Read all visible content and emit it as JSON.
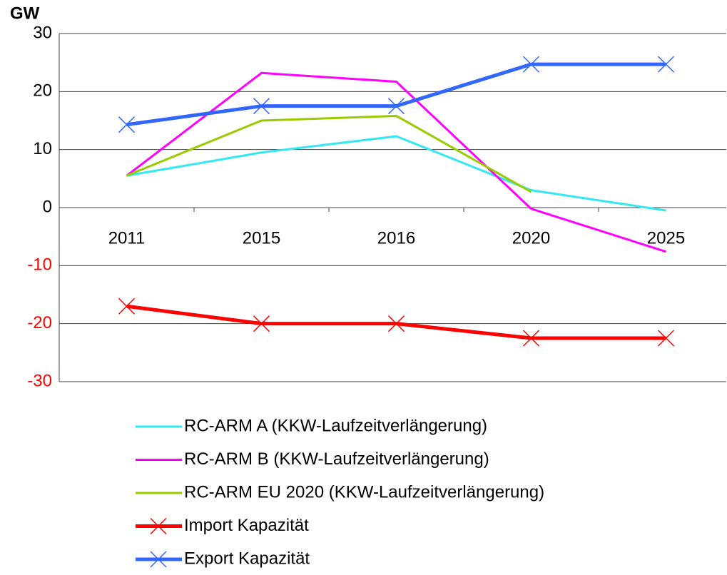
{
  "chart_data": {
    "type": "line",
    "y_label": "GW",
    "categories": [
      "2011",
      "2015",
      "2016",
      "2020",
      "2025"
    ],
    "series": [
      {
        "name": "RC-ARM A (KKW-Laufzeitverlängerung)",
        "color": "#33e8f0",
        "values": [
          5.5,
          9.5,
          12.3,
          3,
          -0.5
        ]
      },
      {
        "name": "RC-ARM B (KKW-Laufzeitverlängerung)",
        "color": "#ff00ff",
        "values": [
          5.5,
          23.2,
          21.7,
          -0.2,
          -7.6
        ]
      },
      {
        "name": "RC-ARM EU 2020 (KKW-Laufzeitverlängerung)",
        "color": "#99cc00",
        "values": [
          5.5,
          15,
          15.8,
          2.7,
          null
        ]
      },
      {
        "name": "Import Kapazität",
        "color": "#ff0000",
        "marker": "x",
        "values": [
          -17,
          -20,
          -20,
          -22.5,
          -22.5
        ]
      },
      {
        "name": "Export Kapazität",
        "color": "#3366ff",
        "marker": "x",
        "values": [
          14.3,
          17.5,
          17.5,
          24.7,
          24.7
        ]
      }
    ],
    "ylim": [
      -30,
      30
    ],
    "yticks": [
      -30,
      -20,
      -10,
      0,
      10,
      20,
      30
    ],
    "grid": true,
    "negative_tick_color": "#ff0000",
    "legend": "bottom"
  }
}
